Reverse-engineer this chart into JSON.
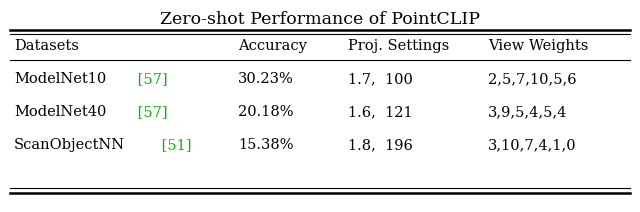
{
  "title": "Zero-shot Performance of PointCLIP",
  "columns": [
    "Datasets",
    "Accuracy",
    "Proj. Settings",
    "View Weights"
  ],
  "dataset_names": [
    "ModelNet10",
    "ModelNet40",
    "ScanObjectNN"
  ],
  "dataset_refs": [
    "[57]",
    "[57]",
    "[51]"
  ],
  "accuracies": [
    "30.23%",
    "20.18%",
    "15.38%"
  ],
  "proj_settings": [
    "1.7,  100",
    "1.6,  121",
    "1.8,  196"
  ],
  "view_weights": [
    "2,5,7,10,5,6",
    "3,9,5,4,5,4",
    "3,10,7,4,1,0"
  ],
  "green_color": "#00bb00",
  "bg_color": "#ffffff",
  "font_size": 10.5,
  "title_font_size": 12.5
}
